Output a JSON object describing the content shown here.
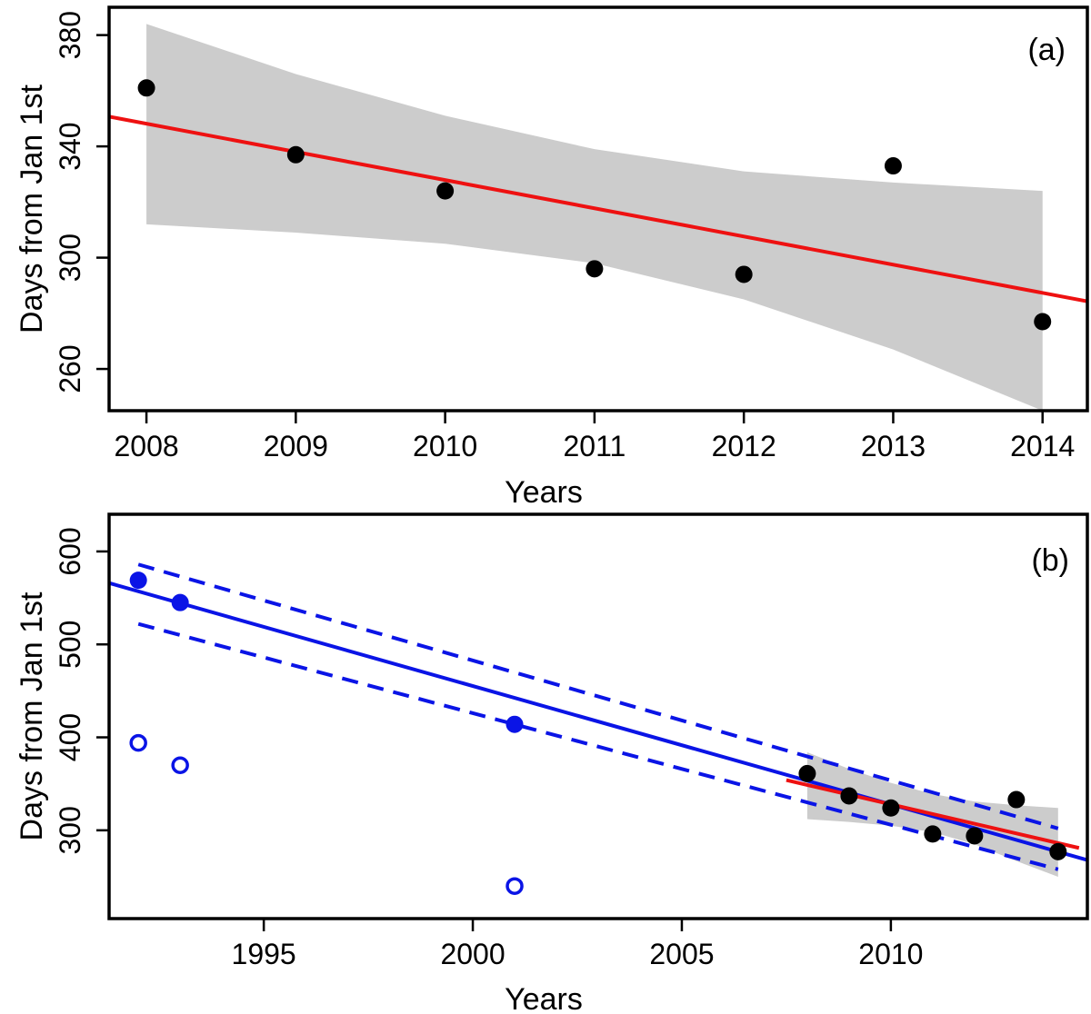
{
  "chart_data": [
    {
      "type": "scatter",
      "panel_label": "(a)",
      "xlabel": "Years",
      "ylabel": "Days from Jan 1st",
      "xlim": [
        2007.75,
        2014.3
      ],
      "ylim": [
        245,
        390
      ],
      "x_ticks": [
        2008,
        2009,
        2010,
        2011,
        2012,
        2013,
        2014
      ],
      "y_ticks": [
        260,
        300,
        340,
        380
      ],
      "series": [
        {
          "name": "observations",
          "marker": "filled-circle",
          "color": "#000000",
          "x": [
            2008,
            2009,
            2010,
            2011,
            2012,
            2013,
            2014
          ],
          "y": [
            361,
            337,
            324,
            296,
            294,
            333,
            277
          ]
        }
      ],
      "trend_line": {
        "color": "#ee1111",
        "x": [
          2007.75,
          2014.3
        ],
        "y": [
          350.7,
          284.3
        ]
      },
      "confidence_band": {
        "color": "#cccccc",
        "x": [
          2008,
          2009,
          2010,
          2011,
          2012,
          2013,
          2014
        ],
        "lower": [
          312,
          309,
          305,
          298,
          285,
          267,
          245
        ],
        "upper": [
          384,
          366,
          351,
          339,
          331,
          327,
          324
        ]
      }
    },
    {
      "type": "scatter",
      "panel_label": "(b)",
      "xlabel": "Years",
      "ylabel": "Days from Jan 1st",
      "xlim": [
        1991.3,
        2014.7
      ],
      "ylim": [
        205,
        640
      ],
      "x_ticks": [
        1995,
        2000,
        2005,
        2010
      ],
      "y_ticks": [
        300,
        400,
        500,
        600
      ],
      "series": [
        {
          "name": "blue filled",
          "marker": "filled-circle",
          "color": "#0a14e6",
          "x": [
            1992,
            1993,
            2001
          ],
          "y": [
            569,
            545,
            414
          ]
        },
        {
          "name": "blue open",
          "marker": "open-circle",
          "color": "#0a14e6",
          "x": [
            1992,
            1993,
            2001
          ],
          "y": [
            394,
            370,
            240
          ]
        },
        {
          "name": "black filled",
          "marker": "filled-circle",
          "color": "#000000",
          "x": [
            2008,
            2009,
            2010,
            2011,
            2012,
            2013,
            2014
          ],
          "y": [
            361,
            337,
            324,
            296,
            294,
            333,
            277
          ]
        }
      ],
      "lines": [
        {
          "name": "blue fit",
          "color": "#0a14e6",
          "style": "solid",
          "x": [
            1991.3,
            2014.7
          ],
          "y": [
            566,
            268
          ]
        },
        {
          "name": "blue upper bound",
          "color": "#0a14e6",
          "style": "dashed",
          "x": [
            1992,
            2014
          ],
          "y": [
            586,
            302
          ]
        },
        {
          "name": "blue lower bound",
          "color": "#0a14e6",
          "style": "dashed",
          "x": [
            1992,
            2014
          ],
          "y": [
            522,
            258
          ]
        },
        {
          "name": "red fit",
          "color": "#ee1111",
          "style": "solid",
          "x": [
            2007.5,
            2014.5
          ],
          "y": [
            354,
            281
          ]
        }
      ],
      "confidence_band": {
        "color": "#cccccc",
        "x": [
          2008,
          2009,
          2010,
          2011,
          2012,
          2013,
          2014
        ],
        "lower": [
          312,
          309,
          305,
          298,
          285,
          267,
          250
        ],
        "upper": [
          384,
          366,
          351,
          339,
          331,
          327,
          324
        ]
      }
    }
  ]
}
